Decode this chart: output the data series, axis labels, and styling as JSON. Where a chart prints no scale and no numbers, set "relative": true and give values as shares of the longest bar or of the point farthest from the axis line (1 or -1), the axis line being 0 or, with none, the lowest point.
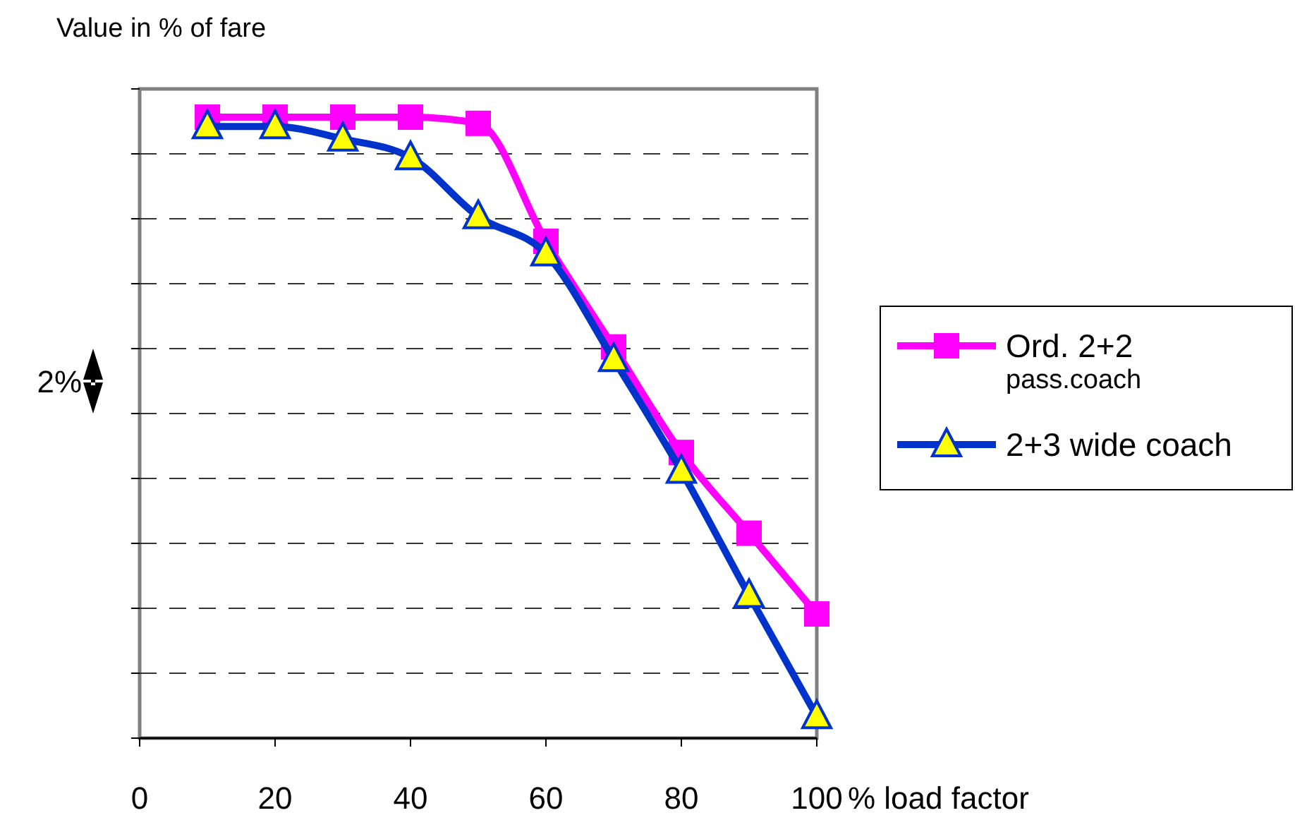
{
  "chart_data": {
    "type": "line",
    "ylabel": "Value in % of fare",
    "xlabel": "% load factor",
    "relative": true,
    "xlim": [
      0,
      100
    ],
    "xticks": [
      0,
      20,
      40,
      60,
      80,
      100
    ],
    "grid": "y",
    "legend": "right",
    "annotations": [
      "2%"
    ],
    "series": [
      {
        "name": "Ord. 2+2\npass.coach",
        "color": "#ff00ff",
        "marker": "square",
        "x": [
          10,
          20,
          30,
          40,
          50,
          60,
          70,
          80,
          90,
          100
        ],
        "values": [
          1,
          1,
          1,
          1,
          0.99,
          0.8,
          0.63,
          0.46,
          0.33,
          0.2
        ]
      },
      {
        "name": "2+3 wide coach",
        "color": "#0033cc",
        "marker": "triangle",
        "x": [
          10,
          20,
          30,
          40,
          50,
          60,
          70,
          80,
          90,
          100
        ],
        "values": [
          0.985,
          0.985,
          0.965,
          0.935,
          0.84,
          0.78,
          0.61,
          0.43,
          0.23,
          0.035
        ]
      }
    ]
  }
}
